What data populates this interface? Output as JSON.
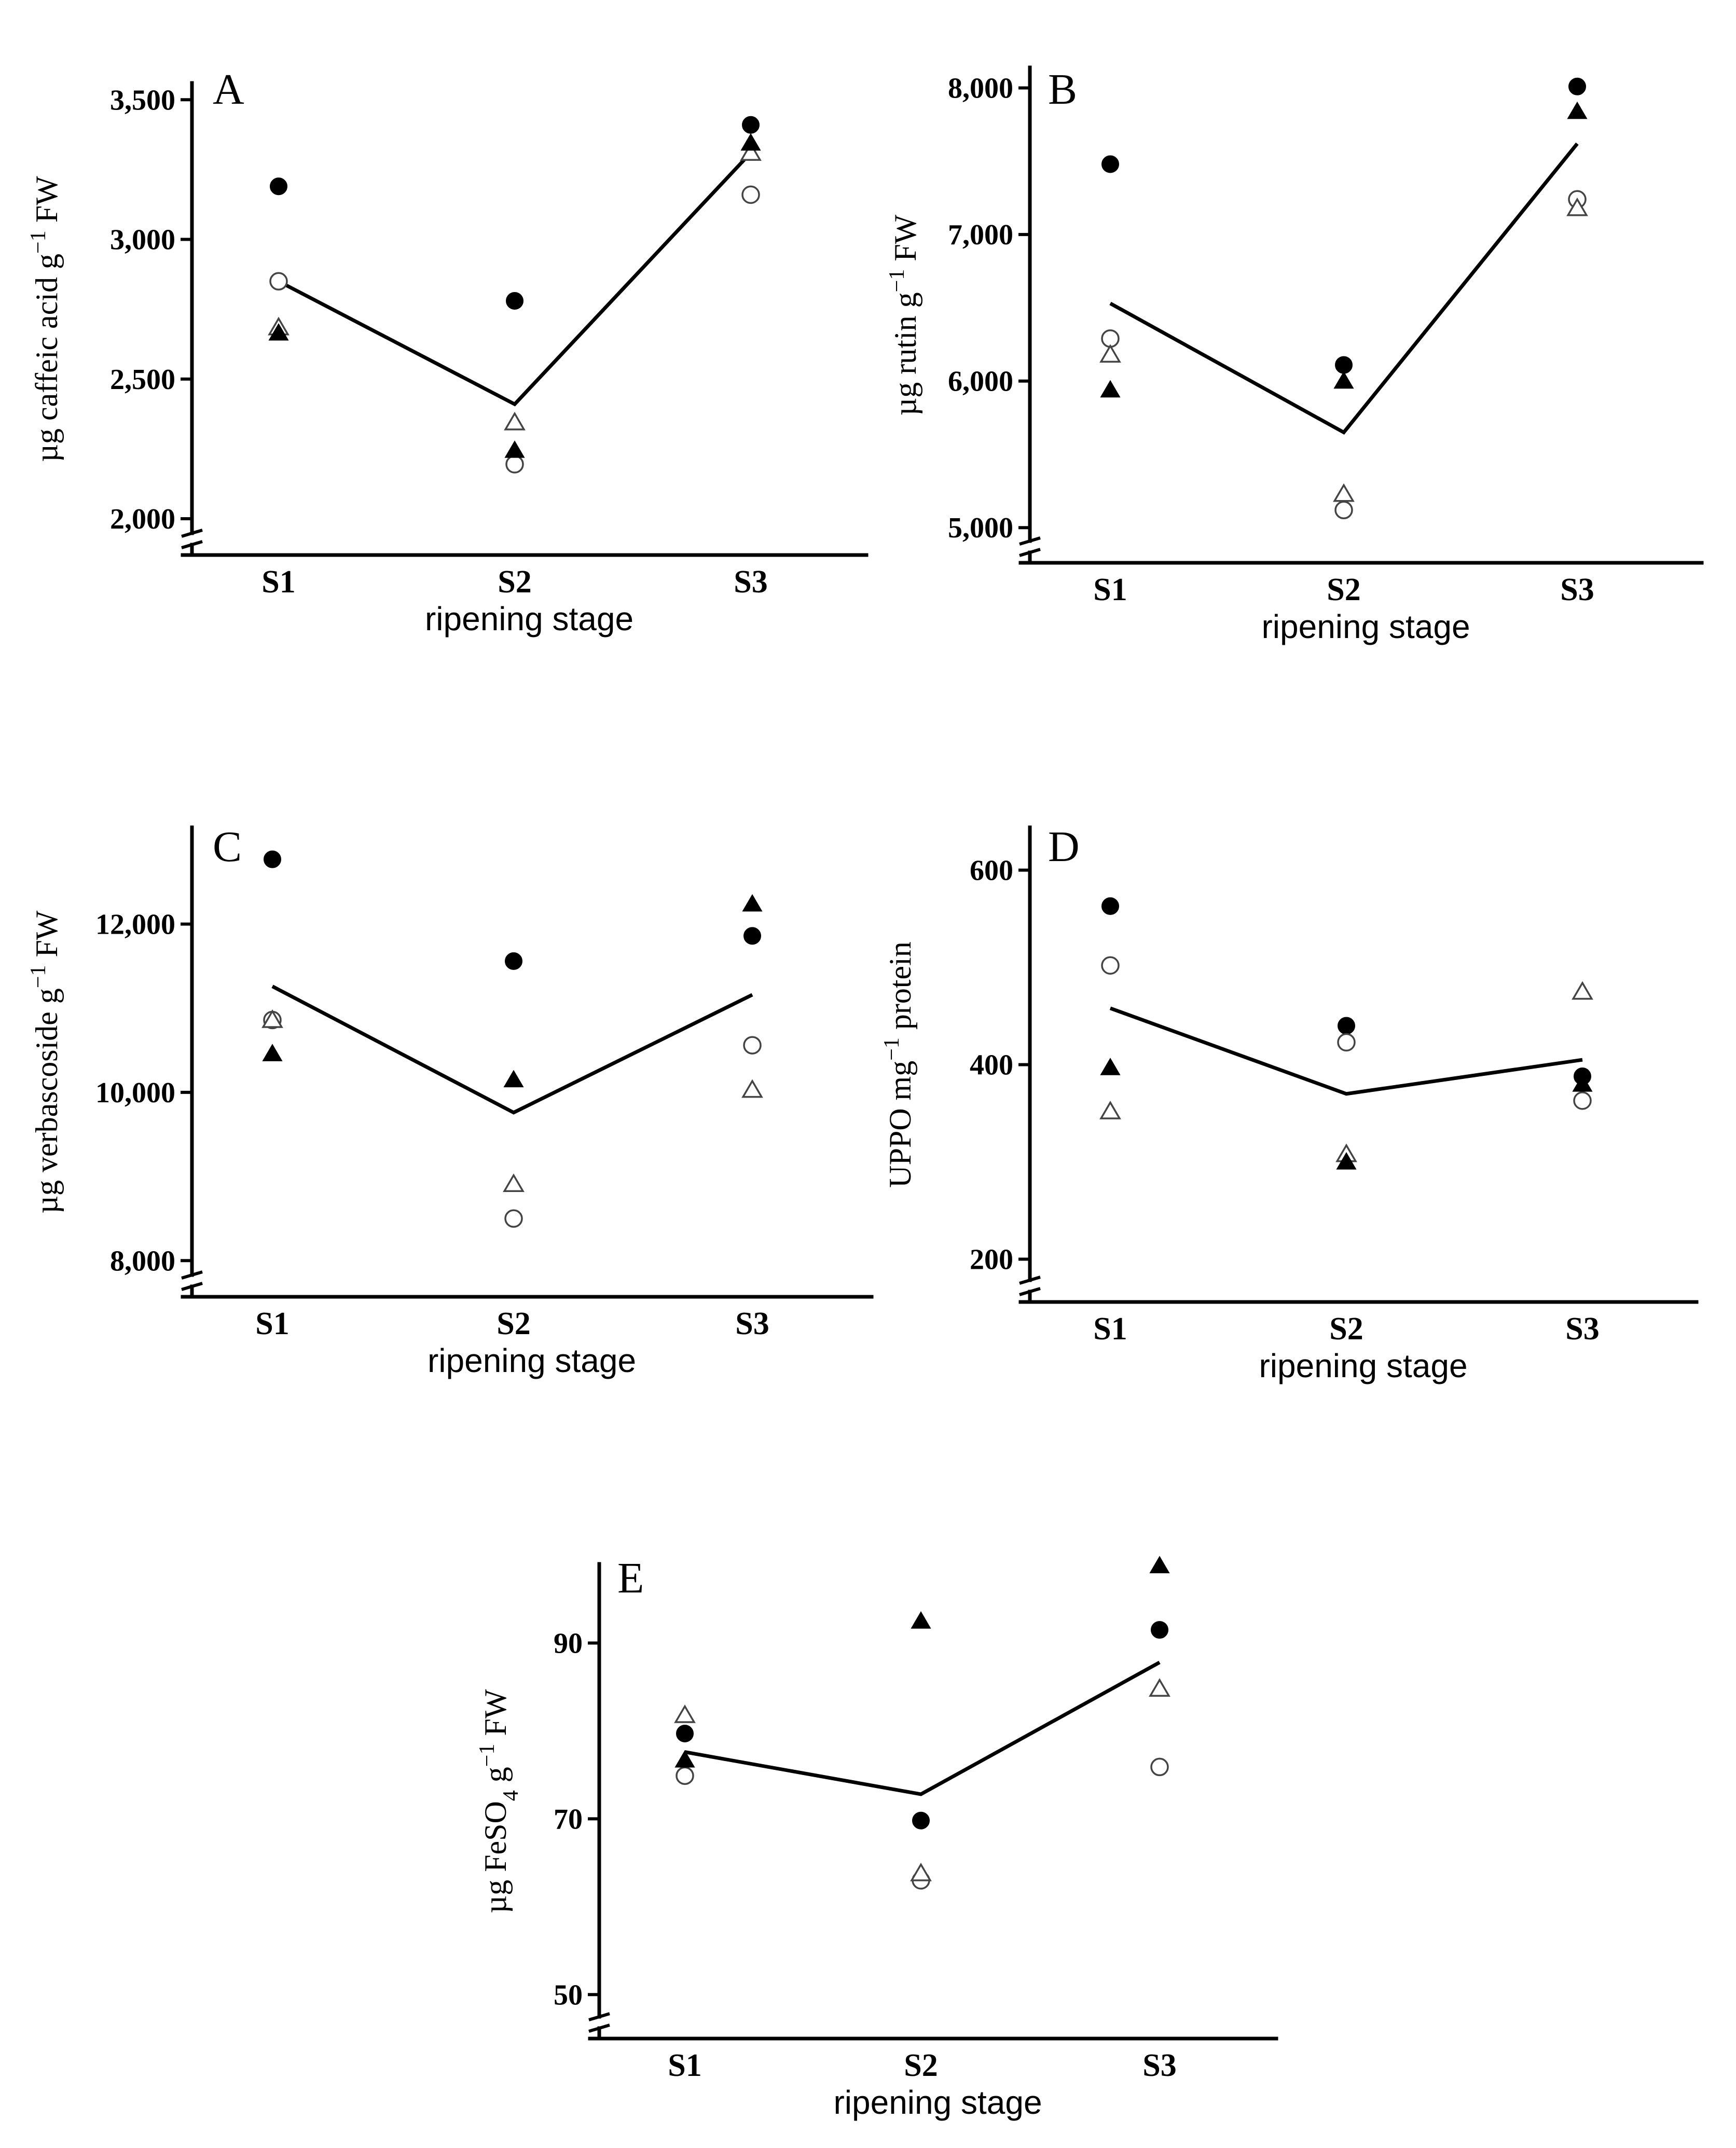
{
  "chart_data": [
    {
      "type": "scatter",
      "panel": "A",
      "ylabel": "µg caffeic acid g⁻¹ FW",
      "xlabel": "ripening stage",
      "categories": [
        "S1",
        "S2",
        "S3"
      ],
      "ylim": [
        1870,
        3560
      ],
      "yticks": [
        2000,
        2500,
        3000,
        3500
      ],
      "yticklabels": [
        "2,000",
        "2,500",
        "3,000",
        "3,500"
      ],
      "axis_break": true,
      "series": [
        {
          "marker": "filled-circle",
          "values": [
            3190,
            2780,
            3410
          ]
        },
        {
          "marker": "open-circle",
          "values": [
            2850,
            2195,
            3160
          ]
        },
        {
          "marker": "open-triangle",
          "values": [
            2685,
            2345,
            3310
          ]
        },
        {
          "marker": "filled-triangle",
          "values": [
            2665,
            2245,
            3345
          ]
        }
      ],
      "mean_line": [
        2850,
        2410,
        3310
      ]
    },
    {
      "type": "scatter",
      "panel": "B",
      "ylabel": "µg rutin g⁻¹ FW",
      "xlabel": "ripening stage",
      "categories": [
        "S1",
        "S2",
        "S3"
      ],
      "ylim": [
        4760,
        8140
      ],
      "yticks": [
        5000,
        6000,
        7000,
        8000
      ],
      "yticklabels": [
        "5,000",
        "6,000",
        "7,000",
        "8,000"
      ],
      "axis_break": true,
      "series": [
        {
          "marker": "filled-circle",
          "values": [
            7480,
            6110,
            8010
          ]
        },
        {
          "marker": "open-circle",
          "values": [
            6290,
            5120,
            7240
          ]
        },
        {
          "marker": "open-triangle",
          "values": [
            6180,
            5230,
            7180
          ]
        },
        {
          "marker": "filled-triangle",
          "values": [
            5940,
            6000,
            7840
          ]
        }
      ],
      "mean_line": [
        6530,
        5650,
        7620
      ]
    },
    {
      "type": "scatter",
      "panel": "C",
      "ylabel": "µg verbascoside g⁻¹ FW",
      "xlabel": "ripening stage",
      "categories": [
        "S1",
        "S2",
        "S3"
      ],
      "ylim": [
        7570,
        13150
      ],
      "yticks": [
        8000,
        10000,
        12000
      ],
      "yticklabels": [
        "8,000",
        "10,000",
        "12,000"
      ],
      "axis_break": true,
      "series": [
        {
          "marker": "filled-circle",
          "values": [
            12770,
            11560,
            11860
          ]
        },
        {
          "marker": "open-circle",
          "values": [
            10860,
            8500,
            10560
          ]
        },
        {
          "marker": "open-triangle",
          "values": [
            10860,
            8910,
            10030
          ]
        },
        {
          "marker": "filled-triangle",
          "values": [
            10460,
            10150,
            12240
          ]
        }
      ],
      "mean_line": [
        11260,
        9760,
        11160
      ]
    },
    {
      "type": "scatter",
      "panel": "D",
      "ylabel": "UPPO mg⁻¹ protein",
      "xlabel": "ripening stage",
      "categories": [
        "S1",
        "S2",
        "S3"
      ],
      "ylim": [
        156,
        644
      ],
      "yticks": [
        200,
        400,
        600
      ],
      "yticklabels": [
        "200",
        "400",
        "600"
      ],
      "axis_break": true,
      "series": [
        {
          "marker": "filled-circle",
          "values": [
            563,
            440,
            388
          ]
        },
        {
          "marker": "open-circle",
          "values": [
            502,
            423,
            363
          ]
        },
        {
          "marker": "open-triangle",
          "values": [
            352,
            308,
            475
          ]
        },
        {
          "marker": "filled-triangle",
          "values": [
            397,
            300,
            380
          ]
        }
      ],
      "mean_line": [
        458,
        370,
        405
      ]
    },
    {
      "type": "scatter",
      "panel": "E",
      "ylabel": "µg FeSO₄ g⁻¹ FW",
      "xlabel": "ripening stage",
      "categories": [
        "S1",
        "S2",
        "S3"
      ],
      "ylim": [
        45,
        99
      ],
      "yticks": [
        50,
        70,
        90
      ],
      "yticklabels": [
        "50",
        "70",
        "90"
      ],
      "axis_break": true,
      "series": [
        {
          "marker": "filled-circle",
          "values": [
            79.7,
            69.8,
            91.5
          ]
        },
        {
          "marker": "open-circle",
          "values": [
            74.9,
            63.0,
            75.9
          ]
        },
        {
          "marker": "open-triangle",
          "values": [
            81.8,
            63.8,
            84.8
          ]
        },
        {
          "marker": "filled-triangle",
          "values": [
            76.7,
            92.5,
            98.8
          ]
        }
      ],
      "mean_line": [
        77.6,
        72.8,
        87.8
      ]
    }
  ]
}
